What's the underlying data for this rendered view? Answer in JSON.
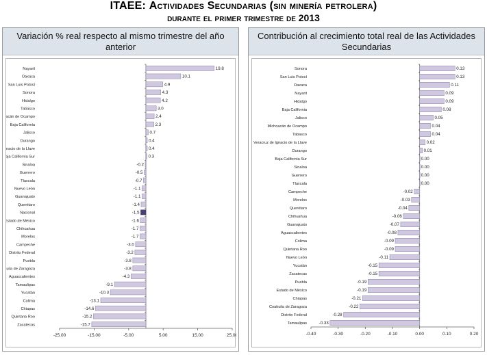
{
  "header": {
    "title_line1_prefix": "ITAEE:",
    "title_line1_rest": "Actividades Secundarias (sin minería petrolera)",
    "title_line2": "durante el primer trimestre de 2013"
  },
  "colors": {
    "bar": "#cfc8de",
    "bar_edge": "#8a7fa8",
    "highlight": "#4a3f72",
    "axis": "#606060"
  },
  "chart_data": [
    {
      "type": "bar",
      "orientation": "horizontal",
      "title": "Variación % real respecto al mismo trimestre del año anterior",
      "categories": [
        "Nayarit",
        "Oaxaca",
        "San Luis Potosí",
        "Sonora",
        "Hidalgo",
        "Tabasco",
        "Michoacán de Ocampo",
        "Baja California",
        "Jalisco",
        "Durango",
        "Veracruz de Ignacio de la Llave",
        "Baja California Sur",
        "Sinaloa",
        "Guerrero",
        "Tlaxcala",
        "Nuevo León",
        "Guanajuato",
        "Querétaro",
        "Nacional",
        "Estado de México",
        "Chihuahua",
        "Morelos",
        "Campeche",
        "Distrito Federal",
        "Puebla",
        "Coahuila de Zaragoza",
        "Aguascalientes",
        "Tamaulipas",
        "Yucatán",
        "Colima",
        "Chiapas",
        "Quintana Roo",
        "Zacatecas"
      ],
      "values": [
        19.8,
        10.1,
        4.9,
        4.3,
        4.2,
        3.0,
        2.4,
        2.3,
        0.7,
        0.4,
        0.4,
        0.3,
        -0.2,
        -0.5,
        -0.7,
        -1.1,
        -1.1,
        -1.4,
        -1.5,
        -1.6,
        -1.7,
        -1.7,
        -3.0,
        -3.2,
        -3.8,
        -3.8,
        -4.3,
        -9.1,
        -10.3,
        -13.1,
        -14.6,
        -15.2,
        -15.7
      ],
      "value_labels": [
        "19.8",
        "10.1",
        "4.9",
        "4.3",
        "4.2",
        "3.0",
        "2.4",
        "2.3",
        "0.7",
        "0.4",
        "0.4",
        "0.3",
        "-0.2",
        "-0.5",
        "-0.7",
        "-1.1",
        "-1.1",
        "-1.4",
        "-1.5",
        "-1.6",
        "-1.7",
        "-1.7",
        "-3.0",
        "-3.2",
        "-3.8",
        "-3.8",
        "-4.3",
        "-9.1",
        "-10.3",
        "-13.1",
        "-14.6",
        "-15.2",
        "-15.7"
      ],
      "highlight": "Nacional",
      "xlim": [
        -25,
        25
      ],
      "ticks": [
        -25,
        -15,
        -5,
        5,
        15,
        25
      ],
      "tick_labels": [
        "-25.00",
        "-15.00",
        "-5.00",
        "5.00",
        "15.00",
        "25.00"
      ]
    },
    {
      "type": "bar",
      "orientation": "horizontal",
      "title": "Contribución al crecimiento total real de las Actividades Secundarias",
      "categories": [
        "Sonora",
        "San Luis Potosí",
        "Oaxaca",
        "Nayarit",
        "Hidalgo",
        "Baja California",
        "Jalisco",
        "Michoacán de Ocampo",
        "Tabasco",
        "Veracruz de Ignacio de la Llave",
        "Durango",
        "Baja California Sur",
        "Sinaloa",
        "Guerrero",
        "Tlaxcala",
        "Campeche",
        "Morelos",
        "Querétaro",
        "Chihuahua",
        "Guanajuato",
        "Aguascalientes",
        "Colima",
        "Quintana Roo",
        "Nuevo León",
        "Yucatán",
        "Zacatecas",
        "Puebla",
        "Estado de México",
        "Chiapas",
        "Coahuila de Zaragoza",
        "Distrito Federal",
        "Tamaulipas"
      ],
      "values": [
        0.13,
        0.13,
        0.11,
        0.09,
        0.09,
        0.08,
        0.05,
        0.04,
        0.04,
        0.02,
        0.01,
        0.0,
        0.0,
        0.0,
        0.0,
        -0.02,
        -0.03,
        -0.04,
        -0.06,
        -0.07,
        -0.08,
        -0.09,
        -0.09,
        -0.11,
        -0.15,
        -0.15,
        -0.19,
        -0.19,
        -0.21,
        -0.22,
        -0.28,
        -0.33
      ],
      "value_labels": [
        "0.13",
        "0.13",
        "0.11",
        "0.09",
        "0.09",
        "0.08",
        "0.05",
        "0.04",
        "0.04",
        "0.02",
        "0.01",
        "0.00",
        "0.00",
        "0.00",
        "0.00",
        "-0.02",
        "-0.03",
        "-0.04",
        "-0.06",
        "-0.07",
        "-0.08",
        "-0.09",
        "-0.09",
        "-0.11",
        "-0.15",
        "-0.15",
        "-0.19",
        "-0.19",
        "-0.21",
        "-0.22",
        "-0.28",
        "-0.33"
      ],
      "xlim": [
        -0.4,
        0.2
      ],
      "ticks": [
        -0.4,
        -0.3,
        -0.2,
        -0.1,
        0.0,
        0.1,
        0.2
      ],
      "tick_labels": [
        "-0.40",
        "-0.30",
        "-0.20",
        "-0.10",
        "0.00",
        "0.10",
        "0.20"
      ]
    }
  ]
}
